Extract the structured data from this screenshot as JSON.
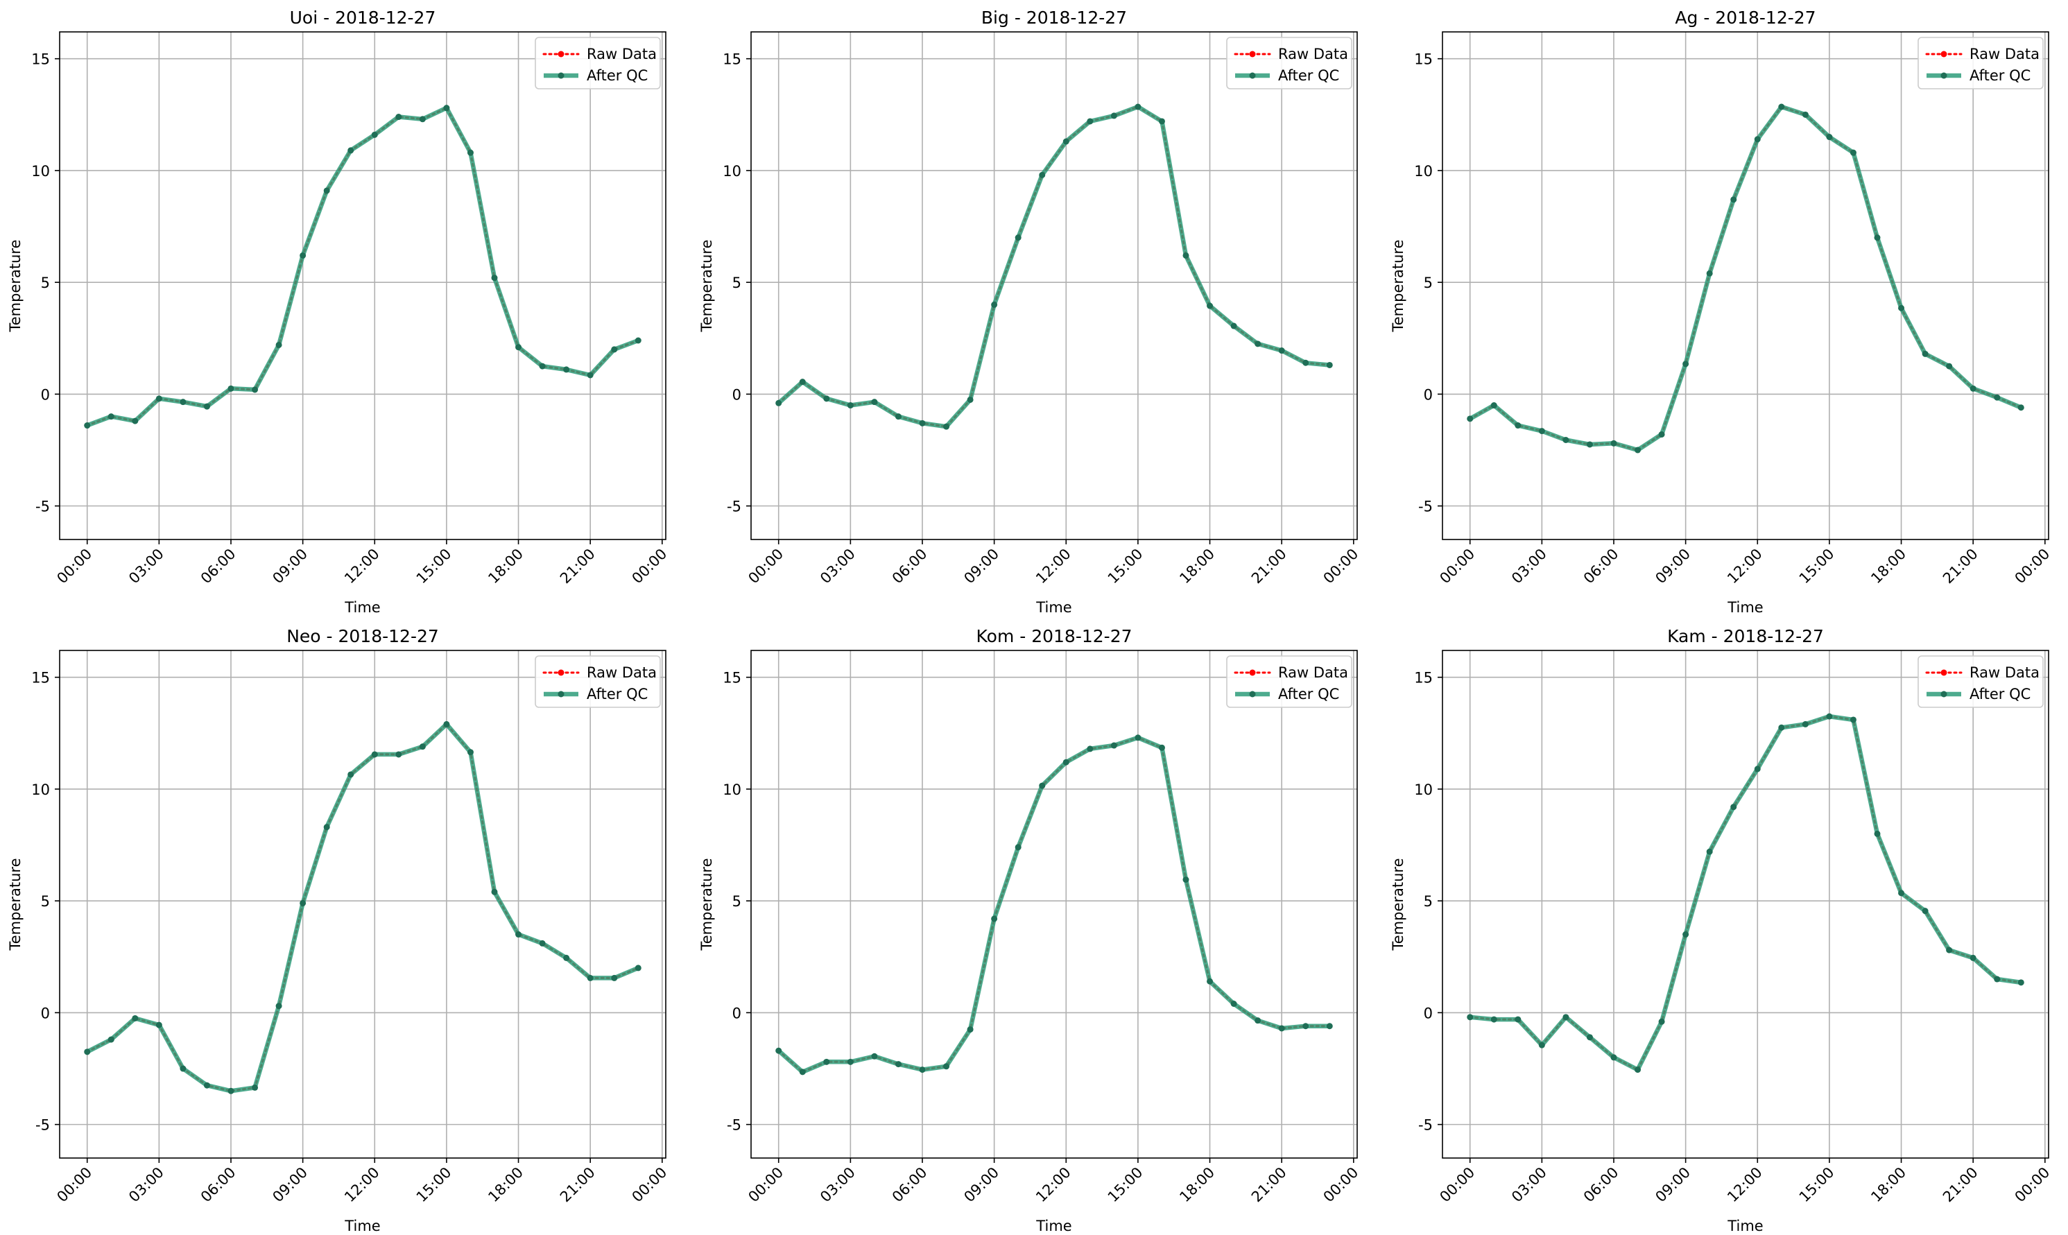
{
  "figure": {
    "legend": {
      "raw_label": "Raw Data",
      "qc_label": "After QC"
    }
  },
  "colors": {
    "raw": "#ff0000",
    "qc": "#2e9c7a",
    "qc_dots": "#1f6e56",
    "grid": "#b0b0b0",
    "axis": "#000000"
  },
  "chart_data": [
    {
      "type": "line",
      "title": "Uoi - 2018-12-27",
      "xlabel": "Time",
      "ylabel": "Temperature",
      "ylim": [
        -6.5,
        16.2
      ],
      "yticks": [
        -5,
        0,
        5,
        10,
        15
      ],
      "xlim_hours": [
        -1.15,
        24.15
      ],
      "xticks": [
        "00:00",
        "03:00",
        "06:00",
        "09:00",
        "12:00",
        "15:00",
        "18:00",
        "21:00",
        "00:00"
      ],
      "x": [
        "00:00",
        "01:00",
        "02:00",
        "03:00",
        "04:00",
        "05:00",
        "06:00",
        "07:00",
        "08:00",
        "09:00",
        "10:00",
        "11:00",
        "12:00",
        "13:00",
        "14:00",
        "15:00",
        "16:00",
        "17:00",
        "18:00",
        "19:00",
        "20:00",
        "21:00",
        "22:00",
        "23:00"
      ],
      "grid": true,
      "legend_position": "upper right",
      "series": [
        {
          "name": "Raw Data",
          "values": [
            -1.4,
            -1.0,
            -1.2,
            -0.2,
            -0.35,
            -0.55,
            0.25,
            0.2,
            2.2,
            6.2,
            9.1,
            10.9,
            11.6,
            12.4,
            12.3,
            12.8,
            10.8,
            5.2,
            2.1,
            1.25,
            1.1,
            0.85,
            2.0,
            2.4
          ]
        },
        {
          "name": "After QC",
          "values": [
            -1.4,
            -1.0,
            -1.2,
            -0.2,
            -0.35,
            -0.55,
            0.25,
            0.2,
            2.2,
            6.2,
            9.1,
            10.9,
            11.6,
            12.4,
            12.3,
            12.8,
            10.8,
            5.2,
            2.1,
            1.25,
            1.1,
            0.85,
            2.0,
            2.4
          ]
        }
      ]
    },
    {
      "type": "line",
      "title": "Big - 2018-12-27",
      "xlabel": "Time",
      "ylabel": "Temperature",
      "ylim": [
        -6.5,
        16.2
      ],
      "yticks": [
        -5,
        0,
        5,
        10,
        15
      ],
      "xlim_hours": [
        -1.15,
        24.15
      ],
      "xticks": [
        "00:00",
        "03:00",
        "06:00",
        "09:00",
        "12:00",
        "15:00",
        "18:00",
        "21:00",
        "00:00"
      ],
      "x": [
        "00:00",
        "01:00",
        "02:00",
        "03:00",
        "04:00",
        "05:00",
        "06:00",
        "07:00",
        "08:00",
        "09:00",
        "10:00",
        "11:00",
        "12:00",
        "13:00",
        "14:00",
        "15:00",
        "16:00",
        "17:00",
        "18:00",
        "19:00",
        "20:00",
        "21:00",
        "22:00",
        "23:00"
      ],
      "grid": true,
      "legend_position": "upper right",
      "series": [
        {
          "name": "Raw Data",
          "values": [
            -0.4,
            0.55,
            -0.2,
            -0.5,
            -0.35,
            -1.0,
            -1.3,
            -1.45,
            -0.25,
            4.0,
            7.0,
            9.8,
            11.3,
            12.2,
            12.45,
            12.85,
            12.2,
            6.2,
            3.95,
            3.05,
            2.25,
            1.95,
            1.4,
            1.3
          ]
        },
        {
          "name": "After QC",
          "values": [
            -0.4,
            0.55,
            -0.2,
            -0.5,
            -0.35,
            -1.0,
            -1.3,
            -1.45,
            -0.25,
            4.0,
            7.0,
            9.8,
            11.3,
            12.2,
            12.45,
            12.85,
            12.2,
            6.2,
            3.95,
            3.05,
            2.25,
            1.95,
            1.4,
            1.3
          ]
        }
      ]
    },
    {
      "type": "line",
      "title": "Ag - 2018-12-27",
      "xlabel": "Time",
      "ylabel": "Temperature",
      "ylim": [
        -6.5,
        16.2
      ],
      "yticks": [
        -5,
        0,
        5,
        10,
        15
      ],
      "xlim_hours": [
        -1.15,
        24.15
      ],
      "xticks": [
        "00:00",
        "03:00",
        "06:00",
        "09:00",
        "12:00",
        "15:00",
        "18:00",
        "21:00",
        "00:00"
      ],
      "x": [
        "00:00",
        "01:00",
        "02:00",
        "03:00",
        "04:00",
        "05:00",
        "06:00",
        "07:00",
        "08:00",
        "09:00",
        "10:00",
        "11:00",
        "12:00",
        "13:00",
        "14:00",
        "15:00",
        "16:00",
        "17:00",
        "18:00",
        "19:00",
        "20:00",
        "21:00",
        "22:00",
        "23:00"
      ],
      "grid": true,
      "legend_position": "upper right",
      "series": [
        {
          "name": "Raw Data",
          "values": [
            -1.1,
            -0.5,
            -1.4,
            -1.65,
            -2.05,
            -2.25,
            -2.2,
            -2.5,
            -1.8,
            1.35,
            5.4,
            8.7,
            11.4,
            12.85,
            12.5,
            11.5,
            10.8,
            7.0,
            3.85,
            1.8,
            1.25,
            0.25,
            -0.15,
            -0.6
          ]
        },
        {
          "name": "After QC",
          "values": [
            -1.1,
            -0.5,
            -1.4,
            -1.65,
            -2.05,
            -2.25,
            -2.2,
            -2.5,
            -1.8,
            1.35,
            5.4,
            8.7,
            11.4,
            12.85,
            12.5,
            11.5,
            10.8,
            7.0,
            3.85,
            1.8,
            1.25,
            0.25,
            -0.15,
            -0.6
          ]
        }
      ]
    },
    {
      "type": "line",
      "title": "Neo - 2018-12-27",
      "xlabel": "Time",
      "ylabel": "Temperature",
      "ylim": [
        -6.5,
        16.2
      ],
      "yticks": [
        -5,
        0,
        5,
        10,
        15
      ],
      "xlim_hours": [
        -1.15,
        24.15
      ],
      "xticks": [
        "00:00",
        "03:00",
        "06:00",
        "09:00",
        "12:00",
        "15:00",
        "18:00",
        "21:00",
        "00:00"
      ],
      "x": [
        "00:00",
        "01:00",
        "02:00",
        "03:00",
        "04:00",
        "05:00",
        "06:00",
        "07:00",
        "08:00",
        "09:00",
        "10:00",
        "11:00",
        "12:00",
        "13:00",
        "14:00",
        "15:00",
        "16:00",
        "17:00",
        "18:00",
        "19:00",
        "20:00",
        "21:00",
        "22:00",
        "23:00"
      ],
      "grid": true,
      "legend_position": "upper right",
      "series": [
        {
          "name": "Raw Data",
          "values": [
            -1.75,
            -1.2,
            -0.25,
            -0.55,
            -2.5,
            -3.25,
            -3.5,
            -3.35,
            0.3,
            4.9,
            8.3,
            10.65,
            11.55,
            11.55,
            11.9,
            12.9,
            11.65,
            5.4,
            3.5,
            3.1,
            2.45,
            1.55,
            1.55,
            2.0
          ]
        },
        {
          "name": "After QC",
          "values": [
            -1.75,
            -1.2,
            -0.25,
            -0.55,
            -2.5,
            -3.25,
            -3.5,
            -3.35,
            0.3,
            4.9,
            8.3,
            10.65,
            11.55,
            11.55,
            11.9,
            12.9,
            11.65,
            5.4,
            3.5,
            3.1,
            2.45,
            1.55,
            1.55,
            2.0
          ]
        }
      ]
    },
    {
      "type": "line",
      "title": "Kom - 2018-12-27",
      "xlabel": "Time",
      "ylabel": "Temperature",
      "ylim": [
        -6.5,
        16.2
      ],
      "yticks": [
        -5,
        0,
        5,
        10,
        15
      ],
      "xlim_hours": [
        -1.15,
        24.15
      ],
      "xticks": [
        "00:00",
        "03:00",
        "06:00",
        "09:00",
        "12:00",
        "15:00",
        "18:00",
        "21:00",
        "00:00"
      ],
      "x": [
        "00:00",
        "01:00",
        "02:00",
        "03:00",
        "04:00",
        "05:00",
        "06:00",
        "07:00",
        "08:00",
        "09:00",
        "10:00",
        "11:00",
        "12:00",
        "13:00",
        "14:00",
        "15:00",
        "16:00",
        "17:00",
        "18:00",
        "19:00",
        "20:00",
        "21:00",
        "22:00",
        "23:00"
      ],
      "grid": true,
      "legend_position": "upper right",
      "series": [
        {
          "name": "Raw Data",
          "values": [
            -1.7,
            -2.65,
            -2.2,
            -2.2,
            -1.95,
            -2.3,
            -2.55,
            -2.4,
            -0.75,
            4.2,
            7.4,
            10.15,
            11.2,
            11.8,
            11.95,
            12.3,
            11.85,
            5.95,
            1.4,
            0.4,
            -0.35,
            -0.7,
            -0.6,
            -0.6
          ]
        },
        {
          "name": "After QC",
          "values": [
            -1.7,
            -2.65,
            -2.2,
            -2.2,
            -1.95,
            -2.3,
            -2.55,
            -2.4,
            -0.75,
            4.2,
            7.4,
            10.15,
            11.2,
            11.8,
            11.95,
            12.3,
            11.85,
            5.95,
            1.4,
            0.4,
            -0.35,
            -0.7,
            -0.6,
            -0.6
          ]
        }
      ]
    },
    {
      "type": "line",
      "title": "Kam - 2018-12-27",
      "xlabel": "Time",
      "ylabel": "Temperature",
      "ylim": [
        -6.5,
        16.2
      ],
      "yticks": [
        -5,
        0,
        5,
        10,
        15
      ],
      "xlim_hours": [
        -1.15,
        24.15
      ],
      "xticks": [
        "00:00",
        "03:00",
        "06:00",
        "09:00",
        "12:00",
        "15:00",
        "18:00",
        "21:00",
        "00:00"
      ],
      "x": [
        "00:00",
        "01:00",
        "02:00",
        "03:00",
        "04:00",
        "05:00",
        "06:00",
        "07:00",
        "08:00",
        "09:00",
        "10:00",
        "11:00",
        "12:00",
        "13:00",
        "14:00",
        "15:00",
        "16:00",
        "17:00",
        "18:00",
        "19:00",
        "20:00",
        "21:00",
        "22:00",
        "23:00"
      ],
      "grid": true,
      "legend_position": "upper right",
      "series": [
        {
          "name": "Raw Data",
          "values": [
            -0.2,
            -0.3,
            -0.3,
            -1.45,
            -0.2,
            -1.1,
            -2.0,
            -2.55,
            -0.4,
            3.5,
            7.2,
            9.2,
            10.9,
            12.75,
            12.9,
            13.25,
            13.1,
            8.0,
            5.35,
            4.55,
            2.8,
            2.45,
            1.5,
            1.35
          ]
        },
        {
          "name": "After QC",
          "values": [
            -0.2,
            -0.3,
            -0.3,
            -1.45,
            -0.2,
            -1.1,
            -2.0,
            -2.55,
            -0.4,
            3.5,
            7.2,
            9.2,
            10.9,
            12.75,
            12.9,
            13.25,
            13.1,
            8.0,
            5.35,
            4.55,
            2.8,
            2.45,
            1.5,
            1.35
          ]
        }
      ]
    }
  ]
}
